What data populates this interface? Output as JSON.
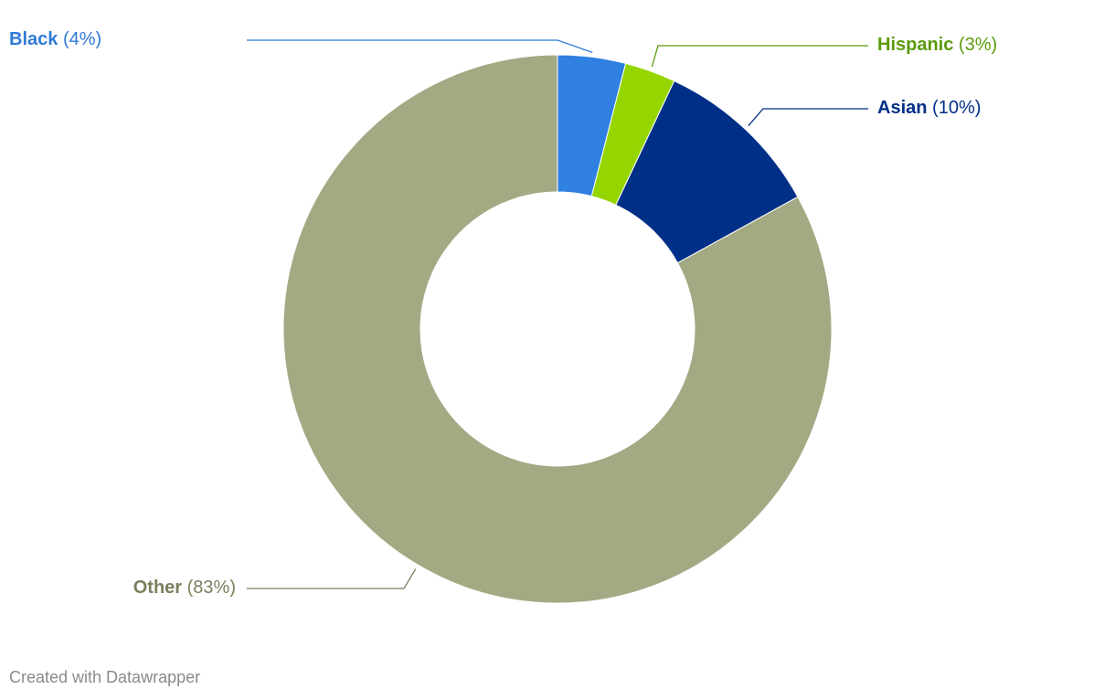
{
  "chart_data": {
    "type": "pie",
    "donut": true,
    "categories": [
      "Black",
      "Hispanic",
      "Asian",
      "Other"
    ],
    "values": [
      4,
      3,
      10,
      83
    ],
    "value_labels": [
      "(4%)",
      "(3%)",
      "(10%)",
      "(83%)"
    ],
    "colors": [
      "#2f80e1",
      "#95d600",
      "#002f87",
      "#a3a983"
    ],
    "label_colors": [
      "#2f7ad6",
      "#5b9a0c",
      "#002f87",
      "#7b7f5c"
    ],
    "credit": "Created with Datawrapper"
  }
}
